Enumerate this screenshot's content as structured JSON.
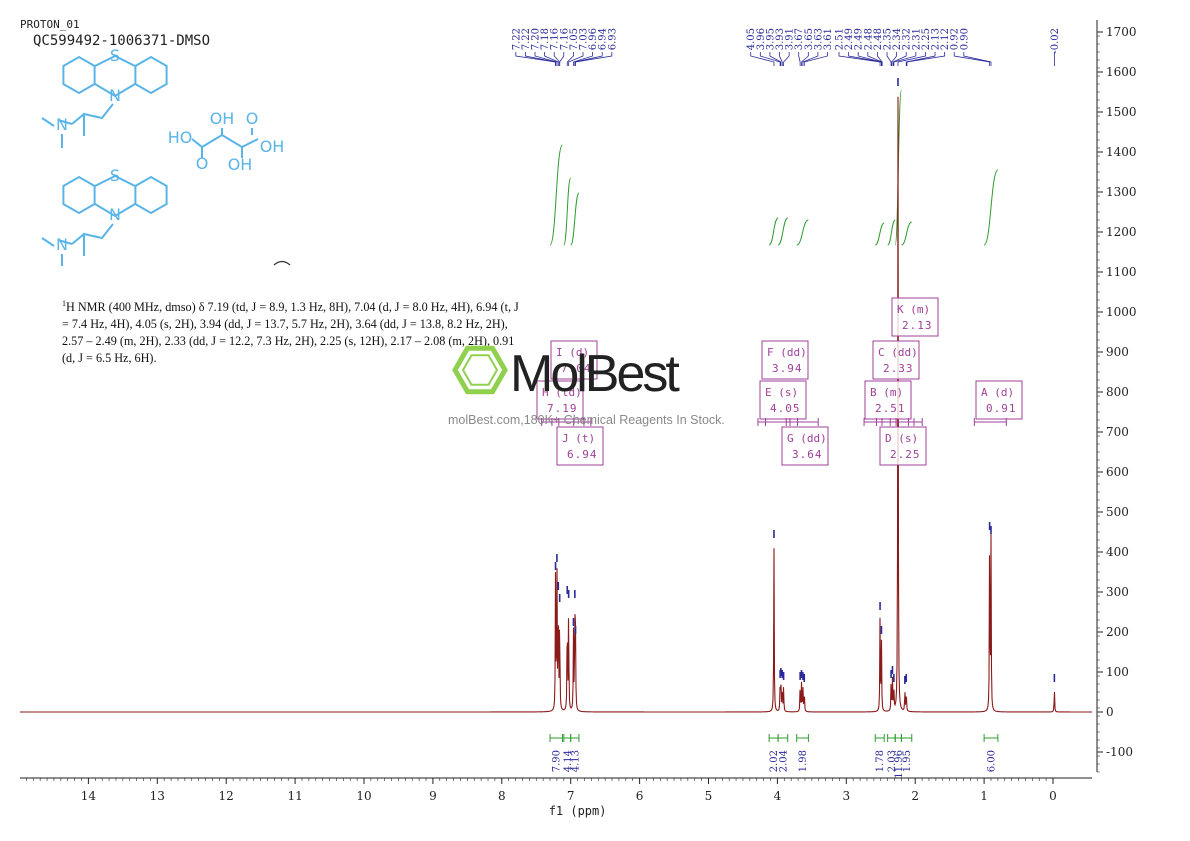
{
  "header": {
    "program": "PROTON_01",
    "sample": "QC599492-1006371-DMSO"
  },
  "description": {
    "lead": "H NMR (400 MHz, dmso) δ 7.19 (td, J = 8.9, 1.3 Hz, 8H), 7.04 (d, J = 8.0 Hz, 4H), 6.94 (t, J = 7.4 Hz, 4H), 4.05 (s, 2H), 3.94 (dd, J = 13.7, 5.7 Hz, 2H), 3.64 (dd, J = 13.8, 8.2 Hz, 2H), 2.57 – 2.49 (m, 2H), 2.33 (dd, J = 12.2, 7.3 Hz, 2H), 2.25 (s, 12H), 2.17 – 2.08 (m, 2H), 0.91 (d, J = 6.5 Hz, 6H).",
    "sup": "1"
  },
  "watermark": {
    "logo": "MolBest",
    "tagline": "molBest.com,180K+ Chemical Reagents In Stock."
  },
  "molecule": {
    "atoms_top": [
      "S",
      "N",
      "N"
    ],
    "atoms_acid": [
      "HO",
      "OH",
      "O",
      "O",
      "OH",
      "OH"
    ],
    "atoms_bottom": [
      "S",
      "N",
      "N"
    ]
  },
  "colors": {
    "spectrum": "#8b1a1a",
    "integral": "#2e9c2e",
    "peak_label": "#2a2a9a",
    "multiplet_box": "#a0409a",
    "molecule": "#5ab4e8",
    "axis": "#222222"
  },
  "chart_data": {
    "type": "line",
    "xlabel": "f1 (ppm)",
    "x_ticks": [
      "14",
      "13",
      "12",
      "11",
      "10",
      "9",
      "8",
      "7",
      "6",
      "5",
      "4",
      "3",
      "2",
      "1",
      "0"
    ],
    "xlim": [
      15,
      -0.5
    ],
    "y_ticks": [
      "1700",
      "1600",
      "1500",
      "1400",
      "1300",
      "1200",
      "1100",
      "1000",
      "900",
      "800",
      "700",
      "600",
      "500",
      "400",
      "300",
      "200",
      "100",
      "0",
      "-100"
    ],
    "ylim": [
      -150,
      1720
    ],
    "peaks": [
      {
        "ppm": 7.22,
        "h": 340
      },
      {
        "ppm": 7.2,
        "h": 360
      },
      {
        "ppm": 7.18,
        "h": 290
      },
      {
        "ppm": 7.16,
        "h": 260
      },
      {
        "ppm": 7.05,
        "h": 280
      },
      {
        "ppm": 7.03,
        "h": 270
      },
      {
        "ppm": 6.96,
        "h": 200
      },
      {
        "ppm": 6.94,
        "h": 270
      },
      {
        "ppm": 6.93,
        "h": 180
      },
      {
        "ppm": 4.05,
        "h": 420
      },
      {
        "ppm": 3.96,
        "h": 70
      },
      {
        "ppm": 3.95,
        "h": 75
      },
      {
        "ppm": 3.93,
        "h": 70
      },
      {
        "ppm": 3.91,
        "h": 65
      },
      {
        "ppm": 3.67,
        "h": 65
      },
      {
        "ppm": 3.65,
        "h": 70
      },
      {
        "ppm": 3.63,
        "h": 65
      },
      {
        "ppm": 3.61,
        "h": 60
      },
      {
        "ppm": 2.51,
        "h": 240
      },
      {
        "ppm": 2.49,
        "h": 180
      },
      {
        "ppm": 2.35,
        "h": 70
      },
      {
        "ppm": 2.33,
        "h": 80
      },
      {
        "ppm": 2.31,
        "h": 60
      },
      {
        "ppm": 2.25,
        "h": 1550
      },
      {
        "ppm": 2.15,
        "h": 55
      },
      {
        "ppm": 2.13,
        "h": 60
      },
      {
        "ppm": 0.92,
        "h": 440
      },
      {
        "ppm": 0.9,
        "h": 430
      },
      {
        "ppm": -0.02,
        "h": 60
      }
    ],
    "peak_label_groups": [
      {
        "labels": [
          "7.22",
          "7.22",
          "7.20",
          "7.18",
          "7.16",
          "7.16",
          "7.05",
          "7.03",
          "6.96",
          "6.94",
          "6.93"
        ],
        "anchor_ppm": 7.1
      },
      {
        "labels": [
          "4.05",
          "3.96",
          "3.95",
          "3.93",
          "3.91",
          "3.67",
          "3.65",
          "3.63",
          "3.61"
        ],
        "anchor_ppm": 3.83
      },
      {
        "labels": [
          "2.51",
          "2.49",
          "2.49",
          "2.48",
          "2.48",
          "2.35",
          "2.34",
          "2.32",
          "2.31",
          "2.25",
          "2.13",
          "2.12",
          "0.92",
          "0.90"
        ],
        "anchor_ppm": 2.2
      },
      {
        "labels": [
          "-0.02"
        ],
        "anchor_ppm": -0.02
      }
    ],
    "integrals": [
      {
        "from": 7.3,
        "to": 7.12,
        "value": "7.90"
      },
      {
        "from": 7.1,
        "to": 7.0,
        "value": "4.14"
      },
      {
        "from": 7.0,
        "to": 6.88,
        "value": "4.13"
      },
      {
        "from": 4.12,
        "to": 3.99,
        "value": "2.02"
      },
      {
        "from": 3.99,
        "to": 3.85,
        "value": "2.04"
      },
      {
        "from": 3.72,
        "to": 3.55,
        "value": "1.98"
      },
      {
        "from": 2.58,
        "to": 2.45,
        "value": "1.78"
      },
      {
        "from": 2.4,
        "to": 2.29,
        "value": "2.03"
      },
      {
        "from": 2.29,
        "to": 2.2,
        "value": "11.96"
      },
      {
        "from": 2.2,
        "to": 2.05,
        "value": "1.95"
      },
      {
        "from": 1.0,
        "to": 0.8,
        "value": "6.00"
      }
    ],
    "multiplets": [
      {
        "letter": "A",
        "mult": "(d)",
        "shift": "0.91"
      },
      {
        "letter": "B",
        "mult": "(m)",
        "shift": "2.51"
      },
      {
        "letter": "C",
        "mult": "(dd)",
        "shift": "2.33"
      },
      {
        "letter": "D",
        "mult": "(s)",
        "shift": "2.25"
      },
      {
        "letter": "E",
        "mult": "(s)",
        "shift": "4.05"
      },
      {
        "letter": "F",
        "mult": "(dd)",
        "shift": "3.94"
      },
      {
        "letter": "G",
        "mult": "(dd)",
        "shift": "3.64"
      },
      {
        "letter": "H",
        "mult": "(td)",
        "shift": "7.19"
      },
      {
        "letter": "I",
        "mult": "(d)",
        "shift": "7.04"
      },
      {
        "letter": "J",
        "mult": "(t)",
        "shift": "6.94"
      },
      {
        "letter": "K",
        "mult": "(m)",
        "shift": "2.13"
      }
    ]
  }
}
